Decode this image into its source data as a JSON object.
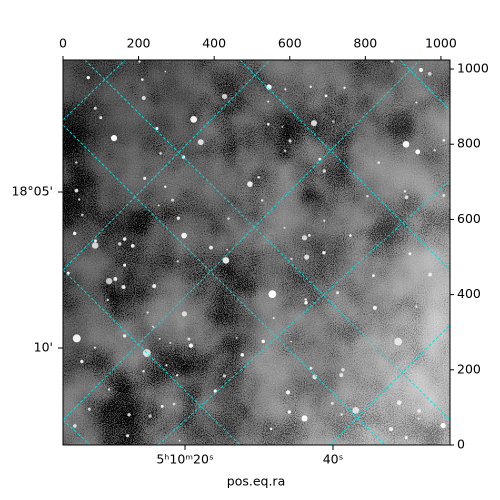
{
  "chart_data": {
    "type": "image",
    "xlabel": "pos.eq.ra",
    "xlim": [
      0,
      1024
    ],
    "xticks": [
      0,
      200,
      400,
      600,
      800,
      1000
    ],
    "ylim": [
      0,
      1024
    ],
    "yticks": [
      0,
      200,
      400,
      600,
      800,
      1000
    ],
    "ra_ticks": [
      "5ʰ10ᵐ20ˢ",
      "40ˢ"
    ],
    "dec_ticks": [
      "18°05'",
      "10'"
    ],
    "grid_color": "#00e0e0"
  }
}
